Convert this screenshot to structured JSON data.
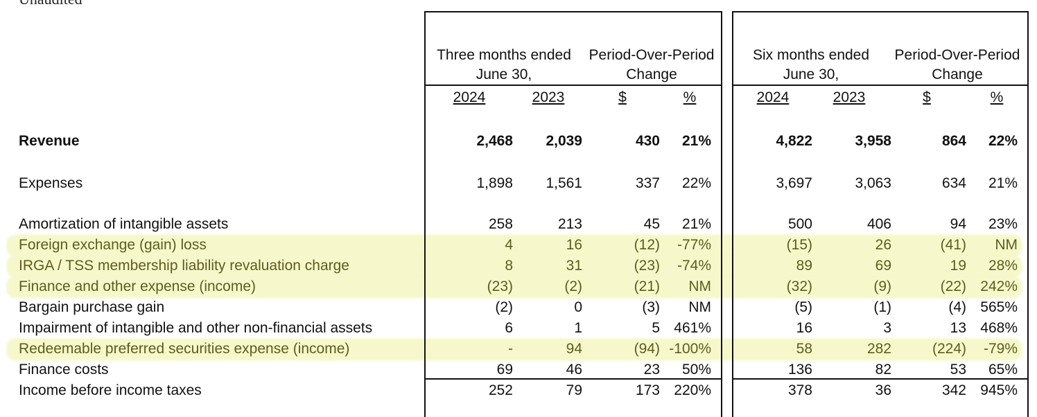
{
  "top_cut_text": "Unaudited",
  "headers": {
    "three_months": {
      "line1": "Three months ended",
      "line2": "June 30,"
    },
    "pop_change_1": {
      "line1": "Period-Over-Period",
      "line2": "Change"
    },
    "six_months": {
      "line1": "Six months ended",
      "line2": "June 30,"
    },
    "pop_change_2": {
      "line1": "Period-Over-Period",
      "line2": "Change"
    },
    "cols": [
      "2024",
      "2023",
      "$",
      "%",
      "2024",
      "2023",
      "$",
      "%"
    ]
  },
  "rows": [
    {
      "label": "Revenue",
      "bold": true,
      "highlight": false,
      "values": [
        "2,468",
        "2,039",
        "430",
        "21%",
        "4,822",
        "3,958",
        "864",
        "22%"
      ]
    },
    {
      "label": "Expenses",
      "bold": false,
      "highlight": false,
      "values": [
        "1,898",
        "1,561",
        "337",
        "22%",
        "3,697",
        "3,063",
        "634",
        "21%"
      ]
    },
    {
      "label": "Amortization of intangible assets",
      "bold": false,
      "highlight": false,
      "values": [
        "258",
        "213",
        "45",
        "21%",
        "500",
        "406",
        "94",
        "23%"
      ]
    },
    {
      "label": "Foreign exchange (gain) loss",
      "bold": false,
      "highlight": true,
      "values": [
        "4",
        "16",
        "(12)",
        "-77%",
        "(15)",
        "26",
        "(41)",
        "NM"
      ]
    },
    {
      "label": "IRGA / TSS membership liability revaluation charge",
      "bold": false,
      "highlight": true,
      "values": [
        "8",
        "31",
        "(23)",
        "-74%",
        "89",
        "69",
        "19",
        "28%"
      ]
    },
    {
      "label": "Finance and other expense (income)",
      "bold": false,
      "highlight": true,
      "values": [
        "(23)",
        "(2)",
        "(21)",
        "NM",
        "(32)",
        "(9)",
        "(22)",
        "242%"
      ]
    },
    {
      "label": "Bargain purchase gain",
      "bold": false,
      "highlight": false,
      "values": [
        "(2)",
        "0",
        "(3)",
        "NM",
        "(5)",
        "(1)",
        "(4)",
        "565%"
      ]
    },
    {
      "label": "Impairment of intangible and other non-financial assets",
      "bold": false,
      "highlight": false,
      "values": [
        "6",
        "1",
        "5",
        "461%",
        "16",
        "3",
        "13",
        "468%"
      ]
    },
    {
      "label": "Redeemable preferred securities expense (income)",
      "bold": false,
      "highlight": true,
      "values": [
        "-",
        "94",
        "(94)",
        "-100%",
        "58",
        "282",
        "(224)",
        "-79%"
      ]
    },
    {
      "label": "Finance costs",
      "bold": false,
      "highlight": false,
      "values": [
        "69",
        "46",
        "23",
        "50%",
        "136",
        "82",
        "53",
        "65%"
      ]
    },
    {
      "label": "Income before income taxes",
      "bold": false,
      "highlight": false,
      "values": [
        "252",
        "79",
        "173",
        "220%",
        "378",
        "36",
        "342",
        "945%"
      ]
    }
  ]
}
